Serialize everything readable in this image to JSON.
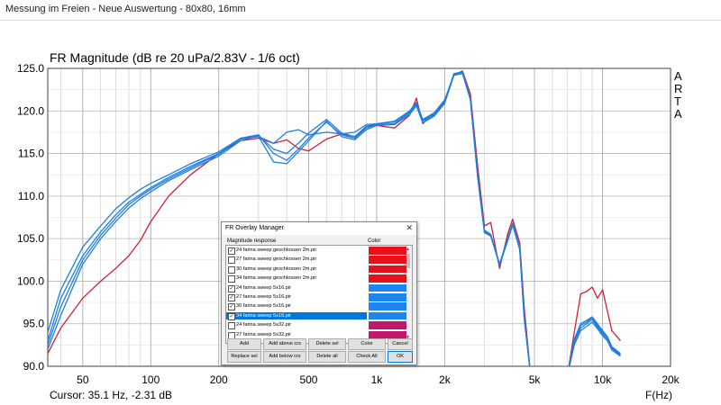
{
  "window": {
    "title": "Messung im Freien - Neue Auswertung - 80x80, 16mm"
  },
  "chart": {
    "title": "FR Magnitude (dB re 20 uPa/2.83V - 1/6 oct)",
    "brand": [
      "A",
      "R",
      "T",
      "A"
    ]
  },
  "status": {
    "cursor": "Cursor: 35.1 Hz, -2.31 dB",
    "xaxis_label": "F(Hz)"
  },
  "chart_data": {
    "type": "line",
    "xscale": "log",
    "xlim": [
      35,
      20000
    ],
    "ylim": [
      90,
      125
    ],
    "y_ticks": [
      90,
      95,
      100,
      105,
      110,
      115,
      120,
      125
    ],
    "y_tick_labels": [
      "90.0",
      "95.0",
      "100.0",
      "105.0",
      "110.0",
      "115.0",
      "120.0",
      "125.0"
    ],
    "x_ticks": [
      50,
      100,
      200,
      500,
      1000,
      2000,
      5000,
      10000,
      20000
    ],
    "x_tick_labels": [
      "50",
      "100",
      "200",
      "500",
      "1k",
      "2k",
      "5k",
      "10k",
      "20k"
    ],
    "grid": true,
    "background": "#ffffff",
    "series": [
      {
        "color": "#cc2233",
        "x": [
          35,
          40,
          50,
          60,
          70,
          80,
          90,
          100,
          120,
          150,
          200,
          250,
          300,
          350,
          400,
          450,
          500,
          600,
          700,
          800,
          900,
          1000,
          1200,
          1400,
          1500,
          1600,
          1800,
          2000,
          2200,
          2400,
          2600,
          2800,
          3000,
          3200,
          3500,
          3800,
          4000,
          4300,
          4500,
          4800,
          5000,
          5500,
          6000,
          7000,
          7500,
          8000,
          8500,
          9000,
          9500,
          10000,
          10500,
          11000,
          12000
        ],
        "y": [
          91.5,
          94.5,
          98,
          100,
          101.5,
          103,
          104.8,
          107,
          110,
          112.5,
          115,
          116.5,
          116.8,
          116.2,
          116.6,
          115.6,
          115.3,
          116.7,
          117.3,
          116.8,
          118.2,
          118.3,
          118,
          119.5,
          121.5,
          118.5,
          119.8,
          121.3,
          124.2,
          124.7,
          122,
          113.5,
          106.5,
          106.9,
          101.5,
          105.5,
          107.3,
          104.5,
          97,
          89,
          89,
          89,
          89,
          89,
          94,
          98.5,
          98.8,
          99.3,
          98,
          99,
          96.5,
          94.2,
          93
        ]
      },
      {
        "color": "#1f7fe0",
        "x": [
          35,
          40,
          50,
          60,
          70,
          80,
          90,
          100,
          120,
          150,
          200,
          250,
          300,
          350,
          400,
          450,
          500,
          600,
          700,
          800,
          900,
          1000,
          1200,
          1400,
          1500,
          1600,
          1800,
          2000,
          2200,
          2400,
          2600,
          2800,
          3000,
          3200,
          3500,
          3800,
          4000,
          4300,
          4500,
          4800,
          5000,
          5500,
          6000,
          7000,
          7500,
          8000,
          8500,
          9000,
          9500,
          10000,
          10500,
          11000,
          12000
        ],
        "y": [
          94,
          99,
          104,
          106.5,
          108.5,
          109.8,
          110.8,
          111.5,
          112.5,
          113.8,
          115.2,
          116.8,
          117,
          116.2,
          117.5,
          117.8,
          117.2,
          117.5,
          117.3,
          117.5,
          118.4,
          118.5,
          118.8,
          120,
          121,
          119,
          119.8,
          121.2,
          124.4,
          124.6,
          121.5,
          112.5,
          106,
          105.5,
          102,
          105,
          106.8,
          104,
          96,
          89,
          89,
          89,
          89,
          89,
          93.2,
          95,
          95.4,
          95.8,
          95,
          94.2,
          93.5,
          92.3,
          91.5
        ]
      },
      {
        "color": "#1f7fe0",
        "x": [
          35,
          40,
          50,
          60,
          70,
          80,
          90,
          100,
          120,
          150,
          200,
          250,
          300,
          350,
          400,
          450,
          500,
          600,
          700,
          800,
          900,
          1000,
          1200,
          1400,
          1500,
          1600,
          1800,
          2000,
          2200,
          2400,
          2600,
          2800,
          3000,
          3200,
          3500,
          3800,
          4000,
          4300,
          4500,
          4800,
          5000,
          5500,
          6000,
          7000,
          7500,
          8000,
          8500,
          9000,
          9500,
          10000,
          10500,
          11000,
          12000
        ],
        "y": [
          93,
          98,
          103,
          105.8,
          107.8,
          109.3,
          110.2,
          111,
          112.2,
          113.5,
          115,
          116.8,
          117.2,
          115,
          114.2,
          115.5,
          116.8,
          118.7,
          117.2,
          116.8,
          118,
          118.4,
          118.5,
          119.8,
          120.8,
          118.8,
          119.5,
          121,
          124.3,
          124.5,
          121.4,
          112.3,
          105.8,
          105.4,
          102,
          104.8,
          106.7,
          103.8,
          95.8,
          89,
          89,
          89,
          89,
          89,
          92.8,
          94.5,
          95,
          95.5,
          94.6,
          93.8,
          93.2,
          92.1,
          91.3
        ]
      },
      {
        "color": "#1f7fe0",
        "x": [
          35,
          40,
          50,
          60,
          70,
          80,
          90,
          100,
          120,
          150,
          200,
          250,
          300,
          350,
          400,
          450,
          500,
          600,
          700,
          800,
          900,
          1000,
          1200,
          1400,
          1500,
          1600,
          1800,
          2000,
          2200,
          2400,
          2600,
          2800,
          3000,
          3200,
          3500,
          3800,
          4000,
          4300,
          4500,
          4800,
          5000,
          5500,
          6000,
          7000,
          7500,
          8000,
          8500,
          9000,
          9500,
          10000,
          10500,
          11000,
          12000
        ],
        "y": [
          92.5,
          97,
          102.5,
          105.4,
          107.4,
          109,
          110,
          110.8,
          112,
          113.3,
          114.9,
          116.7,
          117,
          114,
          113.8,
          115.2,
          116.5,
          118.8,
          117,
          116.6,
          117.8,
          118.3,
          118.4,
          119.6,
          120.6,
          118.6,
          119.4,
          120.9,
          124.2,
          124.4,
          121.3,
          112.2,
          105.7,
          105.3,
          101.9,
          104.7,
          106.6,
          103.7,
          95.6,
          89,
          89,
          89,
          89,
          89,
          92.5,
          94.2,
          94.7,
          95.2,
          94.4,
          93.6,
          93,
          91.9,
          91.2
        ]
      },
      {
        "color": "#1f7fe0",
        "x": [
          35,
          40,
          50,
          60,
          70,
          80,
          90,
          100,
          120,
          150,
          200,
          250,
          300,
          350,
          400,
          450,
          500,
          600,
          700,
          800,
          900,
          1000,
          1200,
          1400,
          1500,
          1600,
          1800,
          2000,
          2200,
          2400,
          2600,
          2800,
          3000,
          3200,
          3500,
          3800,
          4000,
          4300,
          4500,
          4800,
          5000,
          5500,
          6000,
          7000,
          7500,
          8000,
          8500,
          9000,
          9500,
          10000,
          10500,
          11000,
          12000
        ],
        "y": [
          92,
          96,
          102,
          105,
          107,
          108.6,
          109.7,
          110.5,
          111.8,
          113.1,
          114.7,
          116.5,
          117.1,
          115.5,
          115,
          116.2,
          117.4,
          119,
          117.4,
          117,
          118.2,
          118.5,
          118.7,
          119.9,
          120.9,
          118.9,
          119.6,
          121.1,
          124.3,
          124.5,
          121.4,
          112.4,
          105.9,
          105.5,
          102,
          104.9,
          106.8,
          103.9,
          95.9,
          89,
          89,
          89,
          89,
          89,
          93,
          94.8,
          95.2,
          95.7,
          94.8,
          94,
          93.4,
          92.2,
          91.4
        ]
      }
    ]
  },
  "dialog": {
    "title": "FR Overlay Manager",
    "close_glyph": "✕",
    "col_magnitude": "Magnitude response",
    "col_color": "Color",
    "check_glyph": "✓",
    "items": [
      {
        "label": "24 farina sweep geschlossen 2m.pir",
        "checked": true,
        "color": "#e8111b",
        "selected": false
      },
      {
        "label": "27 farina sweep geschlossen 2m.pir",
        "checked": false,
        "color": "#e8111b",
        "selected": false
      },
      {
        "label": "30 farina sweep geschlossen 2m.pir",
        "checked": false,
        "color": "#e8111b",
        "selected": false
      },
      {
        "label": "34 farina sweep geschlossen 2m.pir",
        "checked": false,
        "color": "#e8111b",
        "selected": false
      },
      {
        "label": "24 farina sweep 5x16.pir",
        "checked": true,
        "color": "#1c86ee",
        "selected": false
      },
      {
        "label": "27 farina sweep 5x16.pir",
        "checked": true,
        "color": "#1c86ee",
        "selected": false
      },
      {
        "label": "30 farina sweep 5x16.pir",
        "checked": true,
        "color": "#1c86ee",
        "selected": false
      },
      {
        "label": "34 farina sweep 5x16.pir",
        "checked": true,
        "color": "#1c86ee",
        "selected": true
      },
      {
        "label": "24 farina sweep 5x32.pir",
        "checked": false,
        "color": "#c2186b",
        "selected": false
      },
      {
        "label": "27 farina sweep 5x32.pir",
        "checked": false,
        "color": "#c2186b",
        "selected": false
      }
    ],
    "buttons": {
      "add": "Add",
      "add_above": "Add above crs",
      "delete_sel": "Delete sel",
      "color": "Color",
      "cancel": "Cancel",
      "replace_sel": "Replace sel",
      "add_below": "Add below crs",
      "delete_all": "Delete all",
      "check_all": "Check All",
      "ok": "OK"
    },
    "scroll_up": "▲",
    "scroll_down": "▼"
  }
}
